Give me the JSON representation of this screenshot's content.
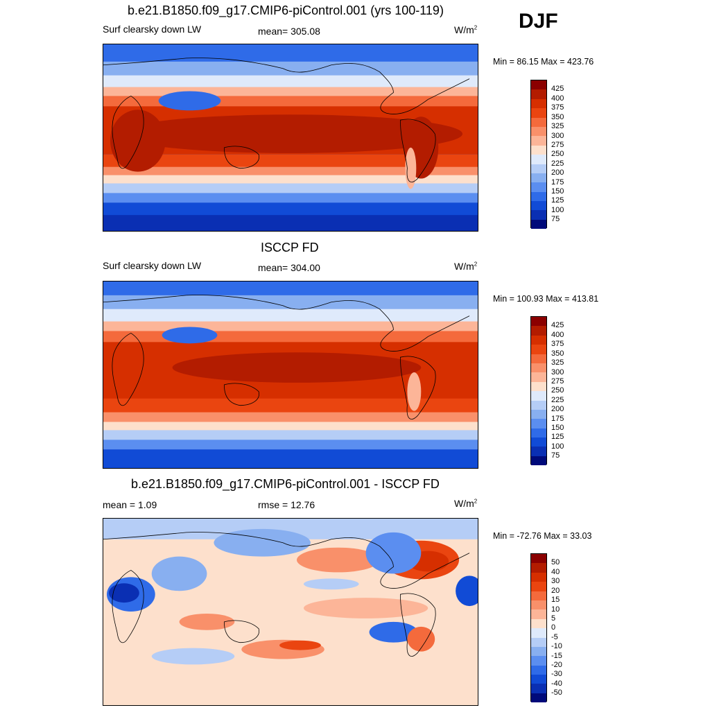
{
  "season": "DJF",
  "units_base": "W/m",
  "units_exp": "2",
  "panels": [
    {
      "title": "b.e21.B1850.f09_g17.CMIP6-piControl.001 (yrs 100-119)",
      "left_label": "Surf clearsky down LW",
      "center_label": "mean= 305.08",
      "minmax": "Min =  86.15 Max = 423.76"
    },
    {
      "title": "ISCCP FD",
      "left_label": "Surf clearsky down LW",
      "center_label": "mean= 304.00",
      "minmax": "Min = 100.93 Max = 413.81"
    },
    {
      "title": "b.e21.B1850.f09_g17.CMIP6-piControl.001 - ISCCP FD",
      "left_label": "mean =   1.09",
      "center_label": "rmse =  12.76",
      "minmax": "Min = -72.76 Max =  33.03"
    }
  ],
  "colorbar_abs": {
    "labels": [
      "425",
      "400",
      "375",
      "350",
      "325",
      "300",
      "275",
      "250",
      "225",
      "200",
      "175",
      "150",
      "125",
      "100",
      "75"
    ],
    "colors": [
      "#8b0000",
      "#b31c00",
      "#d62f00",
      "#ea4510",
      "#f46a3c",
      "#f9906a",
      "#fcb598",
      "#fde0cc",
      "#dfeafb",
      "#b5cdf6",
      "#88aff0",
      "#5b8ef0",
      "#2f6be8",
      "#114bd6",
      "#0a2fb3",
      "#000a7a"
    ]
  },
  "colorbar_diff": {
    "labels": [
      "50",
      "40",
      "30",
      "20",
      "15",
      "10",
      "5",
      "0",
      "-5",
      "-10",
      "-15",
      "-20",
      "-30",
      "-40",
      "-50"
    ],
    "colors": [
      "#8b0000",
      "#b31c00",
      "#d62f00",
      "#ea4510",
      "#f46a3c",
      "#f9906a",
      "#fcb598",
      "#fde0cc",
      "#dfeafb",
      "#b5cdf6",
      "#88aff0",
      "#5b8ef0",
      "#2f6be8",
      "#114bd6",
      "#0a2fb3",
      "#000a7a"
    ]
  }
}
